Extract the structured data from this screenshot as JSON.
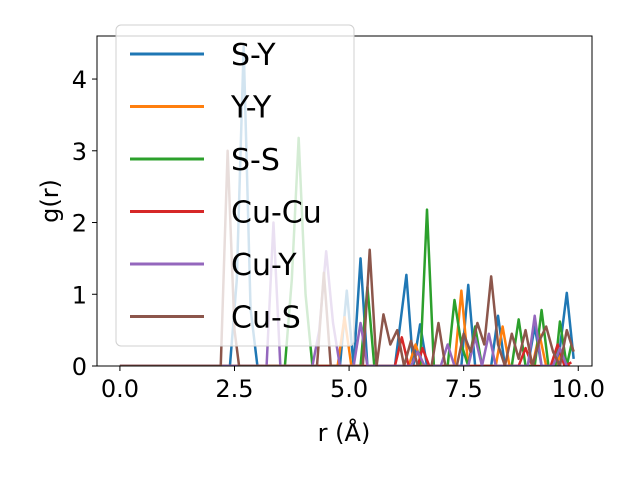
{
  "chart_data": {
    "type": "line",
    "xlabel": "r (Å)",
    "ylabel": "g(r)",
    "xlim": [
      -0.5,
      10.3
    ],
    "ylim": [
      0,
      4.6
    ],
    "xticks": [
      "0.0",
      "2.5",
      "5.0",
      "7.5",
      "10.0"
    ],
    "xtick_values": [
      0,
      2.5,
      5,
      7.5,
      10
    ],
    "yticks": [
      "0",
      "1",
      "2",
      "3",
      "4"
    ],
    "ytick_values": [
      0,
      1,
      2,
      3,
      4
    ],
    "grid": false,
    "legend_position": "upper-left",
    "series": [
      {
        "name": "S-Y",
        "color": "#1f77b4",
        "points": [
          [
            0,
            0
          ],
          [
            2.4,
            0
          ],
          [
            2.55,
            1.2
          ],
          [
            2.7,
            4.45
          ],
          [
            2.85,
            0.8
          ],
          [
            3.0,
            0
          ],
          [
            4.8,
            0
          ],
          [
            4.95,
            1.05
          ],
          [
            5.1,
            0
          ],
          [
            5.25,
            1.5
          ],
          [
            5.4,
            0
          ],
          [
            6.0,
            0
          ],
          [
            6.25,
            1.27
          ],
          [
            6.4,
            0
          ],
          [
            6.55,
            0.58
          ],
          [
            6.7,
            0
          ],
          [
            7.45,
            0
          ],
          [
            7.6,
            1.13
          ],
          [
            7.75,
            0
          ],
          [
            8.1,
            0
          ],
          [
            8.25,
            0.7
          ],
          [
            8.4,
            0
          ],
          [
            8.9,
            0
          ],
          [
            9.05,
            0.55
          ],
          [
            9.2,
            0
          ],
          [
            9.55,
            0
          ],
          [
            9.75,
            1.02
          ],
          [
            9.9,
            0.1
          ]
        ]
      },
      {
        "name": "Y-Y",
        "color": "#ff7f0e",
        "points": [
          [
            0,
            0
          ],
          [
            4.75,
            0
          ],
          [
            4.9,
            0.68
          ],
          [
            5.05,
            0
          ],
          [
            6.3,
            0
          ],
          [
            6.45,
            0.3
          ],
          [
            6.6,
            0
          ],
          [
            7.3,
            0
          ],
          [
            7.45,
            1.05
          ],
          [
            7.6,
            0
          ],
          [
            8.2,
            0
          ],
          [
            8.35,
            0.55
          ],
          [
            8.5,
            0
          ],
          [
            9.0,
            0
          ],
          [
            9.15,
            0.45
          ],
          [
            9.3,
            0
          ],
          [
            9.5,
            0
          ],
          [
            9.65,
            0.2
          ],
          [
            9.8,
            0
          ]
        ]
      },
      {
        "name": "S-S",
        "color": "#2ca02c",
        "points": [
          [
            0,
            0
          ],
          [
            3.6,
            0
          ],
          [
            3.75,
            1.2
          ],
          [
            3.9,
            3.18
          ],
          [
            4.05,
            1.0
          ],
          [
            4.2,
            0
          ],
          [
            5.25,
            0
          ],
          [
            5.4,
            1.1
          ],
          [
            5.55,
            0
          ],
          [
            6.55,
            0
          ],
          [
            6.7,
            2.18
          ],
          [
            6.85,
            0
          ],
          [
            7.15,
            0
          ],
          [
            7.3,
            0.92
          ],
          [
            7.45,
            0.3
          ],
          [
            7.6,
            0
          ],
          [
            7.75,
            0.55
          ],
          [
            7.9,
            0
          ],
          [
            8.55,
            0
          ],
          [
            8.7,
            0.65
          ],
          [
            8.85,
            0
          ],
          [
            9.05,
            0
          ],
          [
            9.2,
            0.78
          ],
          [
            9.35,
            0
          ],
          [
            9.5,
            0
          ],
          [
            9.6,
            0.62
          ],
          [
            9.75,
            0
          ],
          [
            9.85,
            0.3
          ]
        ]
      },
      {
        "name": "Cu-Cu",
        "color": "#d62728",
        "points": [
          [
            0,
            0
          ],
          [
            6.0,
            0
          ],
          [
            6.15,
            0.4
          ],
          [
            6.3,
            0
          ],
          [
            6.5,
            0
          ],
          [
            6.6,
            0.25
          ],
          [
            6.75,
            0
          ],
          [
            8.7,
            0
          ],
          [
            8.85,
            0.25
          ],
          [
            9.0,
            0
          ],
          [
            9.4,
            0
          ],
          [
            9.55,
            0.3
          ],
          [
            9.7,
            0
          ],
          [
            9.85,
            0.05
          ]
        ]
      },
      {
        "name": "Cu-Y",
        "color": "#9467bd",
        "points": [
          [
            0,
            0
          ],
          [
            3.2,
            0
          ],
          [
            3.35,
            2.0
          ],
          [
            3.5,
            0
          ],
          [
            4.2,
            0
          ],
          [
            4.35,
            0.5
          ],
          [
            4.5,
            1.6
          ],
          [
            4.65,
            0.6
          ],
          [
            4.8,
            0
          ],
          [
            5.1,
            0
          ],
          [
            5.25,
            0.6
          ],
          [
            5.4,
            0
          ],
          [
            6.35,
            0
          ],
          [
            6.5,
            0.2
          ],
          [
            6.65,
            0
          ],
          [
            7.0,
            0
          ],
          [
            7.15,
            0.3
          ],
          [
            7.3,
            0
          ],
          [
            7.6,
            0
          ],
          [
            7.75,
            0.4
          ],
          [
            7.9,
            0
          ],
          [
            8.05,
            0.45
          ],
          [
            8.2,
            0
          ],
          [
            8.9,
            0
          ],
          [
            9.05,
            0.7
          ],
          [
            9.2,
            0
          ],
          [
            9.45,
            0
          ],
          [
            9.6,
            0.25
          ],
          [
            9.75,
            0
          ]
        ]
      },
      {
        "name": "Cu-S",
        "color": "#8c564b",
        "points": [
          [
            0,
            0
          ],
          [
            2.2,
            0
          ],
          [
            2.35,
            3.0
          ],
          [
            2.5,
            0.5
          ],
          [
            2.6,
            0
          ],
          [
            4.3,
            0
          ],
          [
            4.45,
            1.3
          ],
          [
            4.6,
            0
          ],
          [
            5.3,
            0
          ],
          [
            5.45,
            1.62
          ],
          [
            5.6,
            0
          ],
          [
            5.75,
            0.72
          ],
          [
            5.9,
            0.3
          ],
          [
            6.05,
            0.5
          ],
          [
            6.2,
            0
          ],
          [
            6.35,
            0.35
          ],
          [
            6.5,
            0
          ],
          [
            6.8,
            0
          ],
          [
            6.95,
            0.6
          ],
          [
            7.1,
            0
          ],
          [
            7.35,
            0
          ],
          [
            7.5,
            0.45
          ],
          [
            7.65,
            0.2
          ],
          [
            7.8,
            0.6
          ],
          [
            7.95,
            0.3
          ],
          [
            8.1,
            1.25
          ],
          [
            8.25,
            0.3
          ],
          [
            8.4,
            0
          ],
          [
            8.55,
            0.45
          ],
          [
            8.7,
            0.1
          ],
          [
            8.85,
            0.5
          ],
          [
            9.0,
            0
          ],
          [
            9.15,
            0.35
          ],
          [
            9.3,
            0.55
          ],
          [
            9.45,
            0.2
          ],
          [
            9.6,
            0
          ],
          [
            9.75,
            0.5
          ],
          [
            9.9,
            0.2
          ]
        ]
      }
    ]
  }
}
